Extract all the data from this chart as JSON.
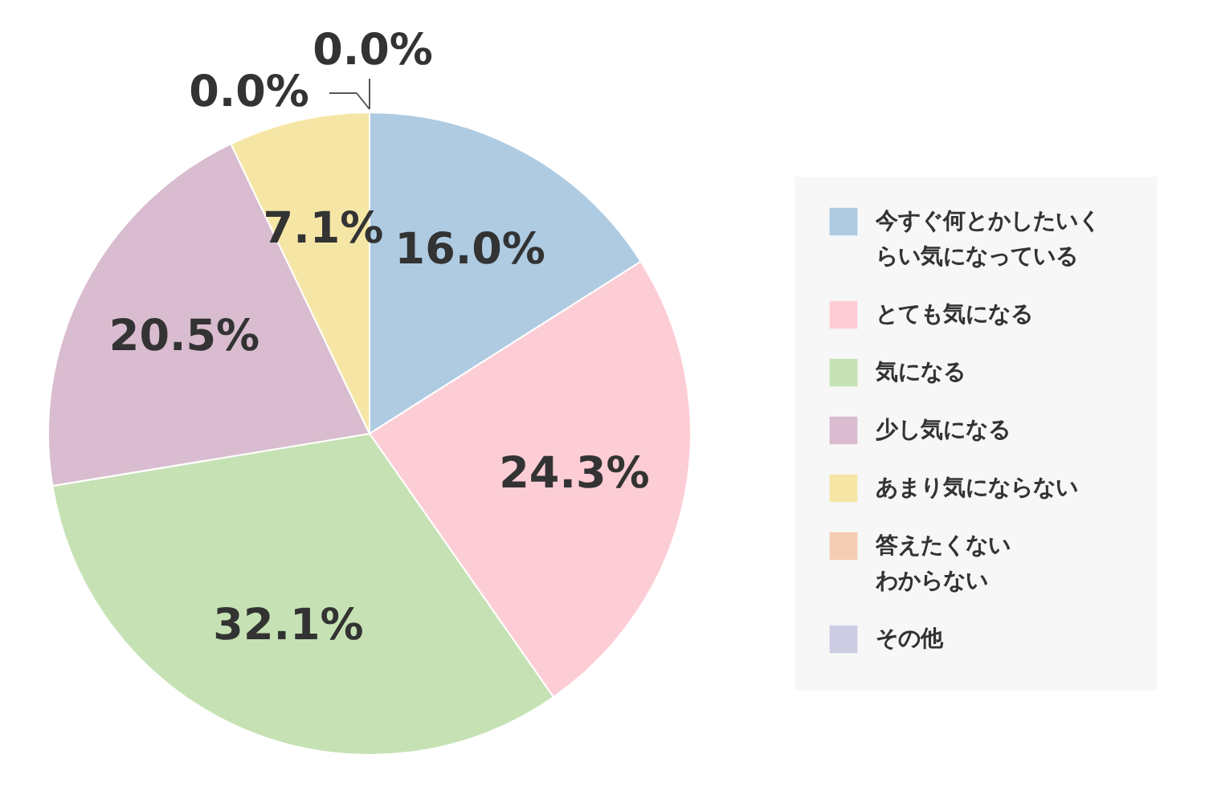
{
  "chart_data": {
    "type": "pie",
    "categories": [
      "今すぐ何とかしたいくらい気になっている",
      "とても気になる",
      "気になる",
      "少し気になる",
      "あまり気にならない",
      "答えたくないわからない",
      "その他"
    ],
    "values": [
      16.0,
      24.3,
      32.1,
      20.5,
      7.1,
      0.0,
      0.0
    ],
    "value_labels": [
      "16.0%",
      "24.3%",
      "32.1%",
      "20.5%",
      "7.1%",
      "0.0%",
      "0.0%"
    ],
    "colors": [
      "#aecbe2",
      "#fdcdd6",
      "#c6e2b4",
      "#d9bccf",
      "#f6e6a6",
      "#f5cdb2",
      "#cccde3"
    ],
    "legend": "right"
  }
}
